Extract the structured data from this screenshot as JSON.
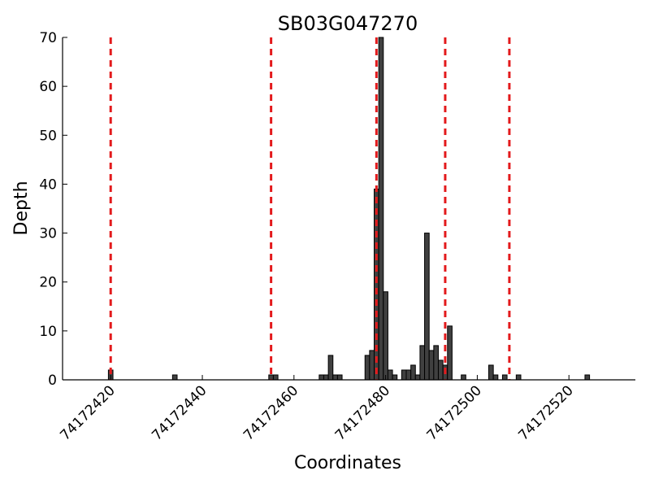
{
  "chart_data": {
    "type": "bar",
    "title": "SB03G047270",
    "xlabel": "Coordinates",
    "ylabel": "Depth",
    "xlim": [
      74172410,
      74172535
    ],
    "ylim": [
      0,
      70
    ],
    "xticks": [
      74172420,
      74172440,
      74172460,
      74172480,
      74172500,
      74172520
    ],
    "yticks": [
      0,
      10,
      20,
      30,
      40,
      50,
      60,
      70
    ],
    "bar_color": "#404040",
    "vline_color": "#e31a1c",
    "vlines": [
      74172420,
      74172455,
      74172478,
      74172493,
      74172507
    ],
    "bars": [
      {
        "x": 74172420,
        "y": 2
      },
      {
        "x": 74172434,
        "y": 1
      },
      {
        "x": 74172455,
        "y": 1
      },
      {
        "x": 74172456,
        "y": 1
      },
      {
        "x": 74172466,
        "y": 1
      },
      {
        "x": 74172467,
        "y": 1
      },
      {
        "x": 74172468,
        "y": 5
      },
      {
        "x": 74172469,
        "y": 1
      },
      {
        "x": 74172470,
        "y": 1
      },
      {
        "x": 74172476,
        "y": 5
      },
      {
        "x": 74172477,
        "y": 6
      },
      {
        "x": 74172478,
        "y": 39
      },
      {
        "x": 74172479,
        "y": 70
      },
      {
        "x": 74172480,
        "y": 18
      },
      {
        "x": 74172481,
        "y": 2
      },
      {
        "x": 74172482,
        "y": 1
      },
      {
        "x": 74172484,
        "y": 2
      },
      {
        "x": 74172485,
        "y": 2
      },
      {
        "x": 74172486,
        "y": 3
      },
      {
        "x": 74172487,
        "y": 1
      },
      {
        "x": 74172488,
        "y": 7
      },
      {
        "x": 74172489,
        "y": 30
      },
      {
        "x": 74172490,
        "y": 6
      },
      {
        "x": 74172491,
        "y": 7
      },
      {
        "x": 74172492,
        "y": 4
      },
      {
        "x": 74172493,
        "y": 3
      },
      {
        "x": 74172494,
        "y": 11
      },
      {
        "x": 74172497,
        "y": 1
      },
      {
        "x": 74172503,
        "y": 3
      },
      {
        "x": 74172504,
        "y": 1
      },
      {
        "x": 74172506,
        "y": 1
      },
      {
        "x": 74172509,
        "y": 1
      },
      {
        "x": 74172524,
        "y": 1
      }
    ],
    "grid": false,
    "legend": "none"
  }
}
